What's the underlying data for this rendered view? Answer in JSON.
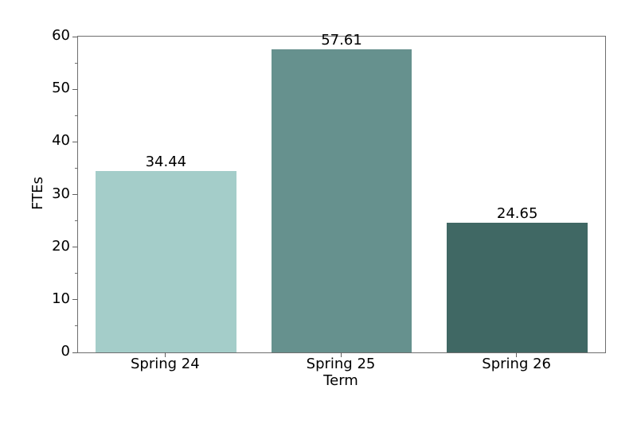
{
  "chart_data": {
    "type": "bar",
    "title": "",
    "xlabel": "Term",
    "ylabel": "FTEs",
    "categories": [
      "Spring 24",
      "Spring 25",
      "Spring 26"
    ],
    "values": [
      34.44,
      57.61,
      24.65
    ],
    "value_labels": [
      "34.44",
      "57.61",
      "24.65"
    ],
    "bar_colors": [
      "#A4CDC9",
      "#66918E",
      "#406864"
    ],
    "ylim": [
      0,
      60
    ],
    "yticks": [
      0,
      10,
      20,
      30,
      40,
      50,
      60
    ],
    "yticks_minor": [
      5,
      15,
      25,
      35,
      45,
      55
    ],
    "grid": false,
    "legend": null,
    "background_color": "#ffffff",
    "spine_color": "#6e6e6e",
    "bar_width_fraction": 0.8
  }
}
